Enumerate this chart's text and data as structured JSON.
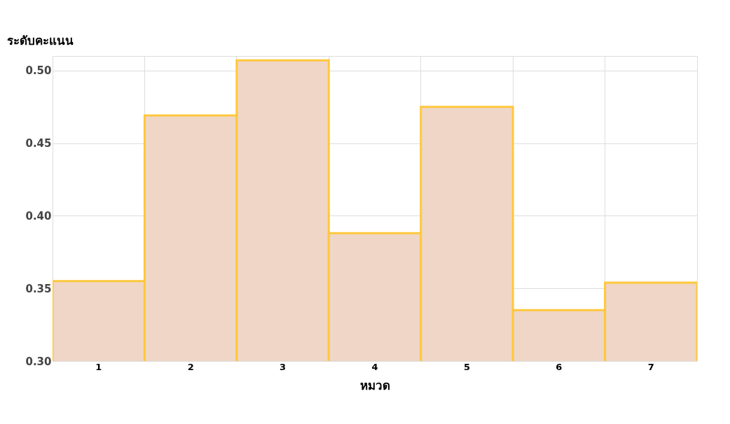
{
  "chart_data": {
    "type": "bar",
    "ylabel": "ระดับคะแนน",
    "xlabel": "หมวด",
    "categories": [
      "1",
      "2",
      "3",
      "4",
      "5",
      "6",
      "7"
    ],
    "values": [
      0.355,
      0.469,
      0.507,
      0.388,
      0.475,
      0.335,
      0.354
    ],
    "color": "#efd6c6",
    "ylim": [
      0.3,
      0.51
    ],
    "yticks": [
      {
        "value": 0.3,
        "label": "0.30"
      },
      0.35,
      {
        "value": 0.4,
        "label": "0.40"
      },
      0.45,
      {
        "value": 0.5,
        "label": "0.50"
      }
    ],
    "grid": true
  }
}
